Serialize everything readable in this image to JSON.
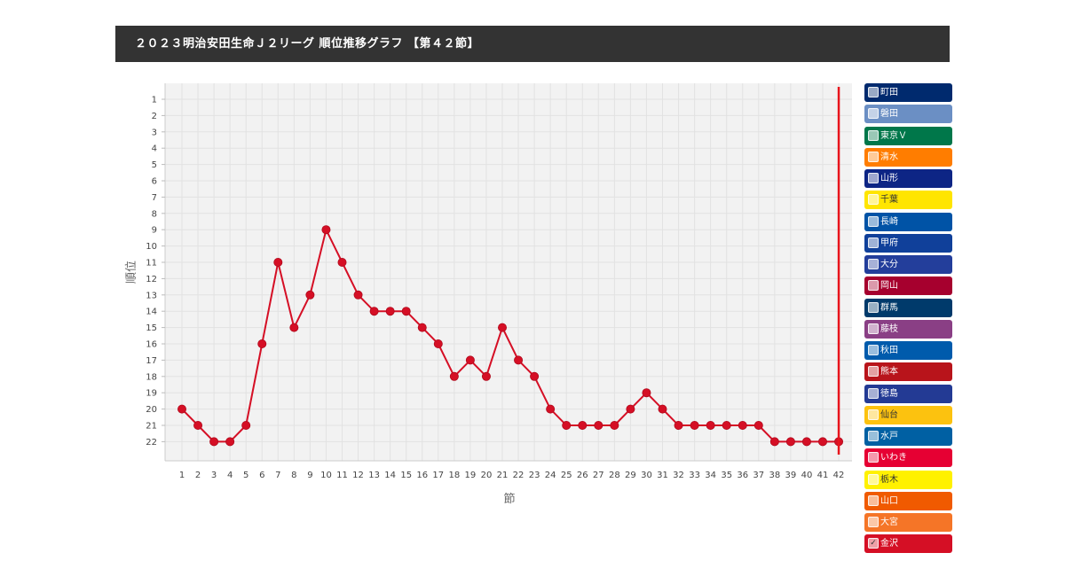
{
  "header": {
    "title": "２０２３明治安田生命Ｊ２リーグ 順位推移グラフ 【第４２節】"
  },
  "chart_data": {
    "type": "line",
    "title": "２０２３明治安田生命Ｊ２リーグ 順位推移グラフ 【第４２節】",
    "xlabel": "節",
    "ylabel": "順位",
    "x": [
      1,
      2,
      3,
      4,
      5,
      6,
      7,
      8,
      9,
      10,
      11,
      12,
      13,
      14,
      15,
      16,
      17,
      18,
      19,
      20,
      21,
      22,
      23,
      24,
      25,
      26,
      27,
      28,
      29,
      30,
      31,
      32,
      33,
      34,
      35,
      36,
      37,
      38,
      39,
      40,
      41,
      42
    ],
    "y_ticks": [
      1,
      2,
      3,
      4,
      5,
      6,
      7,
      8,
      9,
      10,
      11,
      12,
      13,
      14,
      15,
      16,
      17,
      18,
      19,
      20,
      21,
      22
    ],
    "y_reversed": true,
    "ylim": [
      1,
      22
    ],
    "xlim": [
      1,
      42
    ],
    "current_round": 42,
    "grid": true,
    "legend_position": "right",
    "series": [
      {
        "name": "金沢",
        "color": "#d50f25",
        "values": [
          20,
          21,
          22,
          22,
          21,
          16,
          11,
          15,
          13,
          9,
          11,
          13,
          14,
          14,
          14,
          15,
          16,
          18,
          17,
          18,
          15,
          17,
          18,
          20,
          21,
          21,
          21,
          21,
          20,
          19,
          20,
          21,
          21,
          21,
          21,
          21,
          21,
          22,
          22,
          22,
          22,
          22
        ]
      }
    ]
  },
  "legend": {
    "items": [
      {
        "label": "町田",
        "color": "#002a6e",
        "checked": false
      },
      {
        "label": "磐田",
        "color": "#6b8fc4",
        "checked": false
      },
      {
        "label": "東京Ｖ",
        "color": "#00774a",
        "checked": false
      },
      {
        "label": "清水",
        "color": "#ff7d00",
        "checked": false
      },
      {
        "label": "山形",
        "color": "#0d2585",
        "checked": false
      },
      {
        "label": "千葉",
        "color": "#ffe500",
        "checked": false
      },
      {
        "label": "長崎",
        "color": "#0053a6",
        "checked": false
      },
      {
        "label": "甲府",
        "color": "#10409a",
        "checked": false
      },
      {
        "label": "大分",
        "color": "#233e9b",
        "checked": false
      },
      {
        "label": "岡山",
        "color": "#a6002e",
        "checked": false
      },
      {
        "label": "群馬",
        "color": "#003a6b",
        "checked": false
      },
      {
        "label": "藤枝",
        "color": "#8a3f85",
        "checked": false
      },
      {
        "label": "秋田",
        "color": "#005bac",
        "checked": false
      },
      {
        "label": "熊本",
        "color": "#b8141b",
        "checked": false
      },
      {
        "label": "徳島",
        "color": "#233a94",
        "checked": false
      },
      {
        "label": "仙台",
        "color": "#fcc20f",
        "checked": false
      },
      {
        "label": "水戸",
        "color": "#0060a3",
        "checked": false
      },
      {
        "label": "いわき",
        "color": "#e60033",
        "checked": false
      },
      {
        "label": "栃木",
        "color": "#fff100",
        "checked": false
      },
      {
        "label": "山口",
        "color": "#f05a00",
        "checked": false
      },
      {
        "label": "大宮",
        "color": "#f57527",
        "checked": false
      },
      {
        "label": "金沢",
        "color": "#d50f25",
        "checked": true
      }
    ]
  }
}
